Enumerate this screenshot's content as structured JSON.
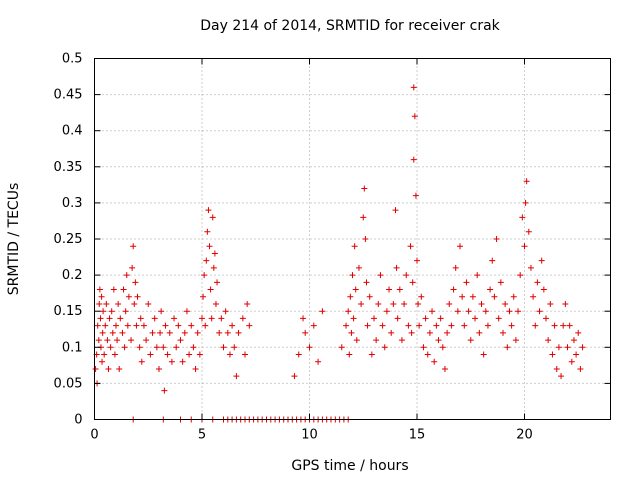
{
  "chart_data": {
    "type": "scatter",
    "title": "Day 214 of 2014, SRMTID for receiver crak",
    "xlabel": "GPS time / hours",
    "ylabel": "SRMTID / TECUs",
    "xlim": [
      0,
      24
    ],
    "ylim": [
      0,
      0.5
    ],
    "xticks": [
      0,
      5,
      10,
      15,
      20
    ],
    "xtick_labels": [
      "0",
      "5",
      "10",
      "15",
      "20"
    ],
    "yticks": [
      0,
      0.05,
      0.1,
      0.15,
      0.2,
      0.25,
      0.3,
      0.35,
      0.4,
      0.45,
      0.5
    ],
    "ytick_labels": [
      "0",
      "0.05",
      "0.1",
      "0.15",
      "0.2",
      "0.25",
      "0.3",
      "0.35",
      "0.4",
      "0.45",
      "0.5"
    ],
    "grid": true,
    "marker": "plus",
    "marker_color": "#e00000",
    "series": [
      {
        "name": "SRMTID",
        "points": [
          [
            0.05,
            0.07
          ],
          [
            0.1,
            0.09
          ],
          [
            0.12,
            0.05
          ],
          [
            0.15,
            0.13
          ],
          [
            0.2,
            0.11
          ],
          [
            0.22,
            0.16
          ],
          [
            0.25,
            0.18
          ],
          [
            0.28,
            0.14
          ],
          [
            0.3,
            0.1
          ],
          [
            0.33,
            0.17
          ],
          [
            0.35,
            0.08
          ],
          [
            0.38,
            0.12
          ],
          [
            0.4,
            0.15
          ],
          [
            0.45,
            0.09
          ],
          [
            0.5,
            0.13
          ],
          [
            0.55,
            0.16
          ],
          [
            0.6,
            0.11
          ],
          [
            0.65,
            0.07
          ],
          [
            0.7,
            0.14
          ],
          [
            0.75,
            0.1
          ],
          [
            0.8,
            0.15
          ],
          [
            0.85,
            0.12
          ],
          [
            0.9,
            0.18
          ],
          [
            0.95,
            0.09
          ],
          [
            1.0,
            0.13
          ],
          [
            1.05,
            0.11
          ],
          [
            1.1,
            0.16
          ],
          [
            1.15,
            0.07
          ],
          [
            1.2,
            0.14
          ],
          [
            1.3,
            0.12
          ],
          [
            1.35,
            0.18
          ],
          [
            1.4,
            0.1
          ],
          [
            1.45,
            0.15
          ],
          [
            1.5,
            0.2
          ],
          [
            1.55,
            0.13
          ],
          [
            1.6,
            0.17
          ],
          [
            1.7,
            0.11
          ],
          [
            1.75,
            0.21
          ],
          [
            1.8,
            0.24
          ],
          [
            1.85,
            0.16
          ],
          [
            1.9,
            0.19
          ],
          [
            1.95,
            0.13
          ],
          [
            2.0,
            0.17
          ],
          [
            2.1,
            0.1
          ],
          [
            2.15,
            0.14
          ],
          [
            2.2,
            0.08
          ],
          [
            2.3,
            0.13
          ],
          [
            2.4,
            0.11
          ],
          [
            2.5,
            0.16
          ],
          [
            2.6,
            0.09
          ],
          [
            2.7,
            0.12
          ],
          [
            2.8,
            0.14
          ],
          [
            2.9,
            0.1
          ],
          [
            3.0,
            0.07
          ],
          [
            3.05,
            0.12
          ],
          [
            3.1,
            0.15
          ],
          [
            3.2,
            0.1
          ],
          [
            3.25,
            0.04
          ],
          [
            3.3,
            0.13
          ],
          [
            3.4,
            0.09
          ],
          [
            3.5,
            0.12
          ],
          [
            3.6,
            0.08
          ],
          [
            3.7,
            0.14
          ],
          [
            3.8,
            0.1
          ],
          [
            3.9,
            0.13
          ],
          [
            4.0,
            0.11
          ],
          [
            4.1,
            0.08
          ],
          [
            4.2,
            0.12
          ],
          [
            4.3,
            0.15
          ],
          [
            4.4,
            0.09
          ],
          [
            4.5,
            0.13
          ],
          [
            4.6,
            0.1
          ],
          [
            4.7,
            0.07
          ],
          [
            4.8,
            0.12
          ],
          [
            4.9,
            0.09
          ],
          [
            5.0,
            0.14
          ],
          [
            5.05,
            0.17
          ],
          [
            5.1,
            0.2
          ],
          [
            5.15,
            0.13
          ],
          [
            5.2,
            0.22
          ],
          [
            5.25,
            0.26
          ],
          [
            5.3,
            0.29
          ],
          [
            5.35,
            0.24
          ],
          [
            5.4,
            0.18
          ],
          [
            5.45,
            0.14
          ],
          [
            5.5,
            0.28
          ],
          [
            5.55,
            0.21
          ],
          [
            5.6,
            0.23
          ],
          [
            5.65,
            0.16
          ],
          [
            5.7,
            0.19
          ],
          [
            5.8,
            0.12
          ],
          [
            5.9,
            0.14
          ],
          [
            6.0,
            0.1
          ],
          [
            6.1,
            0.15
          ],
          [
            6.2,
            0.12
          ],
          [
            6.3,
            0.09
          ],
          [
            6.4,
            0.13
          ],
          [
            6.5,
            0.1
          ],
          [
            6.6,
            0.06
          ],
          [
            6.7,
            0.12
          ],
          [
            6.9,
            0.14
          ],
          [
            7.0,
            0.09
          ],
          [
            7.1,
            0.16
          ],
          [
            7.2,
            0.13
          ],
          [
            9.3,
            0.06
          ],
          [
            9.5,
            0.09
          ],
          [
            9.7,
            0.14
          ],
          [
            9.8,
            0.12
          ],
          [
            10.0,
            0.1
          ],
          [
            10.2,
            0.13
          ],
          [
            10.4,
            0.08
          ],
          [
            10.6,
            0.15
          ],
          [
            11.5,
            0.1
          ],
          [
            11.7,
            0.13
          ],
          [
            11.8,
            0.15
          ],
          [
            11.85,
            0.09
          ],
          [
            11.9,
            0.17
          ],
          [
            11.95,
            0.12
          ],
          [
            12.0,
            0.2
          ],
          [
            12.05,
            0.14
          ],
          [
            12.1,
            0.24
          ],
          [
            12.15,
            0.18
          ],
          [
            12.2,
            0.11
          ],
          [
            12.3,
            0.21
          ],
          [
            12.4,
            0.16
          ],
          [
            12.5,
            0.28
          ],
          [
            12.55,
            0.32
          ],
          [
            12.6,
            0.25
          ],
          [
            12.65,
            0.19
          ],
          [
            12.7,
            0.13
          ],
          [
            12.8,
            0.17
          ],
          [
            12.9,
            0.09
          ],
          [
            13.0,
            0.14
          ],
          [
            13.1,
            0.11
          ],
          [
            13.2,
            0.16
          ],
          [
            13.3,
            0.2
          ],
          [
            13.4,
            0.13
          ],
          [
            13.5,
            0.1
          ],
          [
            13.6,
            0.15
          ],
          [
            13.7,
            0.18
          ],
          [
            13.8,
            0.12
          ],
          [
            13.9,
            0.16
          ],
          [
            14.0,
            0.29
          ],
          [
            14.05,
            0.21
          ],
          [
            14.1,
            0.14
          ],
          [
            14.2,
            0.18
          ],
          [
            14.3,
            0.11
          ],
          [
            14.4,
            0.16
          ],
          [
            14.5,
            0.2
          ],
          [
            14.6,
            0.13
          ],
          [
            14.7,
            0.24
          ],
          [
            14.75,
            0.12
          ],
          [
            14.8,
            0.19
          ],
          [
            14.85,
            0.36
          ],
          [
            14.9,
            0.42
          ],
          [
            14.95,
            0.31
          ],
          [
            15.0,
            0.22
          ],
          [
            15.05,
            0.16
          ],
          [
            15.1,
            0.13
          ],
          [
            15.2,
            0.17
          ],
          [
            15.3,
            0.1
          ],
          [
            15.4,
            0.14
          ],
          [
            15.5,
            0.09
          ],
          [
            15.6,
            0.12
          ],
          [
            15.7,
            0.15
          ],
          [
            15.8,
            0.08
          ],
          [
            15.9,
            0.13
          ],
          [
            16.0,
            0.11
          ],
          [
            16.1,
            0.14
          ],
          [
            16.2,
            0.1
          ],
          [
            16.3,
            0.07
          ],
          [
            16.4,
            0.12
          ],
          [
            16.5,
            0.16
          ],
          [
            16.6,
            0.13
          ],
          [
            16.7,
            0.18
          ],
          [
            16.8,
            0.21
          ],
          [
            16.9,
            0.15
          ],
          [
            17.0,
            0.24
          ],
          [
            17.1,
            0.17
          ],
          [
            17.2,
            0.13
          ],
          [
            17.3,
            0.19
          ],
          [
            17.4,
            0.15
          ],
          [
            17.5,
            0.11
          ],
          [
            17.6,
            0.17
          ],
          [
            17.7,
            0.14
          ],
          [
            17.8,
            0.2
          ],
          [
            17.9,
            0.12
          ],
          [
            18.0,
            0.16
          ],
          [
            18.1,
            0.09
          ],
          [
            18.2,
            0.15
          ],
          [
            18.3,
            0.13
          ],
          [
            18.4,
            0.18
          ],
          [
            18.5,
            0.22
          ],
          [
            18.6,
            0.17
          ],
          [
            18.7,
            0.25
          ],
          [
            18.8,
            0.14
          ],
          [
            18.9,
            0.19
          ],
          [
            19.0,
            0.12
          ],
          [
            19.1,
            0.16
          ],
          [
            19.2,
            0.1
          ],
          [
            19.3,
            0.15
          ],
          [
            19.4,
            0.13
          ],
          [
            19.5,
            0.17
          ],
          [
            19.6,
            0.11
          ],
          [
            19.7,
            0.15
          ],
          [
            19.8,
            0.2
          ],
          [
            19.9,
            0.28
          ],
          [
            20.0,
            0.24
          ],
          [
            20.05,
            0.3
          ],
          [
            20.1,
            0.33
          ],
          [
            20.2,
            0.26
          ],
          [
            20.3,
            0.21
          ],
          [
            20.4,
            0.17
          ],
          [
            20.5,
            0.13
          ],
          [
            20.6,
            0.19
          ],
          [
            20.7,
            0.15
          ],
          [
            20.8,
            0.22
          ],
          [
            20.9,
            0.18
          ],
          [
            21.0,
            0.14
          ],
          [
            21.1,
            0.11
          ],
          [
            21.2,
            0.16
          ],
          [
            21.3,
            0.09
          ],
          [
            21.4,
            0.13
          ],
          [
            21.5,
            0.07
          ],
          [
            21.6,
            0.1
          ],
          [
            21.7,
            0.06
          ],
          [
            21.8,
            0.13
          ],
          [
            21.9,
            0.16
          ],
          [
            22.0,
            0.1
          ],
          [
            22.1,
            0.13
          ],
          [
            22.2,
            0.08
          ],
          [
            22.3,
            0.11
          ],
          [
            22.4,
            0.09
          ],
          [
            22.5,
            0.12
          ],
          [
            22.6,
            0.07
          ],
          [
            22.7,
            0.1
          ]
        ]
      }
    ],
    "zero_points": [
      [
        1.8,
        0
      ],
      [
        3.2,
        0
      ],
      [
        4.0,
        0
      ],
      [
        4.5,
        0
      ],
      [
        5.0,
        0
      ],
      [
        5.5,
        0
      ],
      [
        6.0,
        0
      ],
      [
        6.2,
        0
      ],
      [
        6.4,
        0
      ],
      [
        6.6,
        0
      ],
      [
        6.8,
        0
      ],
      [
        7.0,
        0
      ],
      [
        7.2,
        0
      ],
      [
        7.4,
        0
      ],
      [
        7.6,
        0
      ],
      [
        7.8,
        0
      ],
      [
        8.0,
        0
      ],
      [
        8.2,
        0
      ],
      [
        8.4,
        0
      ],
      [
        8.6,
        0
      ],
      [
        8.8,
        0
      ],
      [
        9.0,
        0
      ],
      [
        9.2,
        0
      ],
      [
        9.4,
        0
      ],
      [
        9.6,
        0
      ],
      [
        9.8,
        0
      ],
      [
        10.0,
        0
      ],
      [
        10.2,
        0
      ],
      [
        10.4,
        0
      ],
      [
        10.6,
        0
      ],
      [
        10.8,
        0
      ],
      [
        11.0,
        0
      ],
      [
        11.2,
        0
      ],
      [
        11.4,
        0
      ],
      [
        11.6,
        0
      ],
      [
        11.8,
        0
      ]
    ],
    "peak_point": [
      14.85,
      0.46
    ]
  }
}
